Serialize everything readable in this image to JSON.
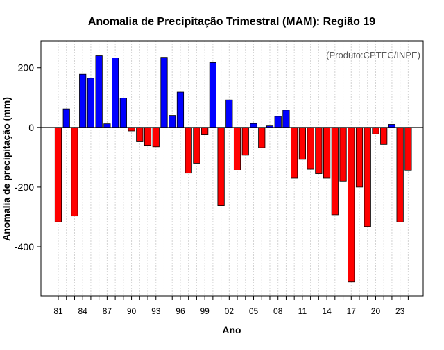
{
  "chart_data": {
    "type": "bar",
    "title": "Anomalia de Precipitação Trimestral (MAM): Região 19",
    "xlabel": "Ano",
    "ylabel": "Anomalia de precipitação (mm)",
    "annotation": "(Produto:CPTEC/INPE)",
    "ylim": [
      -565,
      290
    ],
    "yticks": [
      -400,
      -200,
      0,
      200
    ],
    "ytick_labels": [
      "-400",
      "-200",
      "0",
      "200"
    ],
    "xtick_labels": [
      "81",
      "84",
      "87",
      "90",
      "93",
      "96",
      "99",
      "02",
      "05",
      "08",
      "11",
      "14",
      "17",
      "20",
      "23"
    ],
    "xtick_indices": [
      0,
      3,
      6,
      9,
      12,
      15,
      18,
      21,
      24,
      27,
      30,
      33,
      36,
      39,
      42
    ],
    "grid": true,
    "positive_color": "#0000ff",
    "negative_color": "#ff0000",
    "categories": [
      "1981",
      "1982",
      "1983",
      "1984",
      "1985",
      "1986",
      "1987",
      "1988",
      "1989",
      "1990",
      "1991",
      "1992",
      "1993",
      "1994",
      "1995",
      "1996",
      "1997",
      "1998",
      "1999",
      "2000",
      "2001",
      "2002",
      "2003",
      "2004",
      "2005",
      "2006",
      "2007",
      "2008",
      "2009",
      "2010",
      "2011",
      "2012",
      "2013",
      "2014",
      "2015",
      "2016",
      "2017",
      "2018",
      "2019",
      "2020",
      "2021",
      "2022",
      "2023",
      "2024"
    ],
    "values": [
      -317,
      62,
      -297,
      178,
      165,
      240,
      12,
      233,
      98,
      -12,
      -48,
      -60,
      -65,
      235,
      40,
      118,
      -153,
      -120,
      -25,
      217,
      -262,
      92,
      -143,
      -93,
      13,
      -68,
      5,
      37,
      58,
      -170,
      -107,
      -140,
      -155,
      -170,
      -293,
      -180,
      -518,
      -200,
      -332,
      -22,
      -57,
      10,
      -317,
      -145
    ]
  }
}
